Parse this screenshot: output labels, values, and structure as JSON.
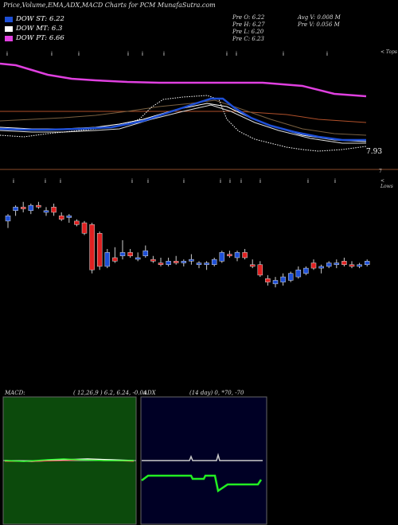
{
  "title": "Price,Volume,EMA,ADX,MACD Charts for PCM MunafaSutra.com",
  "legend": [
    {
      "label": "DOW ST: 6.22",
      "color": "#1e4fd6"
    },
    {
      "label": "DOW MT: 6.3",
      "color": "#ffffff"
    },
    {
      "label": "DOW PT: 6.66",
      "color": "#e040e0"
    }
  ],
  "stats": {
    "prev_open": "Pre O: 6.22",
    "prev_high": "Pre H: 6.27",
    "prev_low": "Pre L: 6.20",
    "prev_close": "Pre C: 6.23",
    "avg_volume": "Avg V: 0.008 M",
    "prev_volume": "Pre V: 0.056 M"
  },
  "labels": {
    "tops": "< Tops",
    "lows": "< Lows",
    "last_price": "7.93",
    "seven": "7"
  },
  "macd": {
    "label": "MACD:",
    "params": "( 12,26,9 ) 6.2, 6.24, -0.04"
  },
  "adx": {
    "label": "ADX",
    "params": "(14 day) 0, *70, -70"
  },
  "colors": {
    "bull": "#1e4fd6",
    "bear": "#e02020",
    "dow_st": "#1e4fd6",
    "dow_pt": "#e040e0",
    "orange_line": "#b0502a",
    "macd_bg": "#0c4a0c",
    "adx_bg": "#000025"
  },
  "chart_data": {
    "type": "candlestick",
    "candles": [
      {
        "o": 6.3,
        "h": 6.34,
        "l": 6.26,
        "c": 6.33
      },
      {
        "o": 6.36,
        "h": 6.39,
        "l": 6.33,
        "c": 6.38
      },
      {
        "o": 6.38,
        "h": 6.41,
        "l": 6.35,
        "c": 6.37
      },
      {
        "o": 6.36,
        "h": 6.4,
        "l": 6.34,
        "c": 6.39
      },
      {
        "o": 6.39,
        "h": 6.41,
        "l": 6.37,
        "c": 6.38
      },
      {
        "o": 6.35,
        "h": 6.38,
        "l": 6.33,
        "c": 6.36
      },
      {
        "o": 6.38,
        "h": 6.4,
        "l": 6.33,
        "c": 6.35
      },
      {
        "o": 6.33,
        "h": 6.35,
        "l": 6.3,
        "c": 6.31
      },
      {
        "o": 6.32,
        "h": 6.34,
        "l": 6.29,
        "c": 6.33
      },
      {
        "o": 6.3,
        "h": 6.31,
        "l": 6.27,
        "c": 6.28
      },
      {
        "o": 6.29,
        "h": 6.3,
        "l": 6.22,
        "c": 6.23
      },
      {
        "o": 6.28,
        "h": 6.29,
        "l": 6.0,
        "c": 6.02
      },
      {
        "o": 6.23,
        "h": 6.24,
        "l": 6.02,
        "c": 6.04
      },
      {
        "o": 6.04,
        "h": 6.14,
        "l": 6.03,
        "c": 6.12
      },
      {
        "o": 6.09,
        "h": 6.15,
        "l": 6.06,
        "c": 6.07
      },
      {
        "o": 6.1,
        "h": 6.19,
        "l": 6.08,
        "c": 6.12
      },
      {
        "o": 6.12,
        "h": 6.14,
        "l": 6.09,
        "c": 6.1
      },
      {
        "o": 6.09,
        "h": 6.12,
        "l": 6.07,
        "c": 6.09
      },
      {
        "o": 6.1,
        "h": 6.16,
        "l": 6.09,
        "c": 6.13
      },
      {
        "o": 6.08,
        "h": 6.1,
        "l": 6.06,
        "c": 6.07
      },
      {
        "o": 6.06,
        "h": 6.09,
        "l": 6.04,
        "c": 6.05
      },
      {
        "o": 6.05,
        "h": 6.09,
        "l": 6.04,
        "c": 6.07
      },
      {
        "o": 6.07,
        "h": 6.1,
        "l": 6.05,
        "c": 6.06
      },
      {
        "o": 6.06,
        "h": 6.08,
        "l": 6.04,
        "c": 6.07
      },
      {
        "o": 6.07,
        "h": 6.11,
        "l": 6.05,
        "c": 6.08
      },
      {
        "o": 6.05,
        "h": 6.07,
        "l": 6.03,
        "c": 6.06
      },
      {
        "o": 6.05,
        "h": 6.07,
        "l": 6.02,
        "c": 6.06
      },
      {
        "o": 6.05,
        "h": 6.09,
        "l": 6.04,
        "c": 6.08
      },
      {
        "o": 6.07,
        "h": 6.13,
        "l": 6.06,
        "c": 6.12
      },
      {
        "o": 6.11,
        "h": 6.13,
        "l": 6.09,
        "c": 6.1
      },
      {
        "o": 6.09,
        "h": 6.13,
        "l": 6.07,
        "c": 6.12
      },
      {
        "o": 6.12,
        "h": 6.14,
        "l": 6.08,
        "c": 6.09
      },
      {
        "o": 6.05,
        "h": 6.08,
        "l": 6.03,
        "c": 6.04
      },
      {
        "o": 6.05,
        "h": 6.07,
        "l": 5.98,
        "c": 5.99
      },
      {
        "o": 5.97,
        "h": 5.99,
        "l": 5.93,
        "c": 5.95
      },
      {
        "o": 5.94,
        "h": 5.98,
        "l": 5.92,
        "c": 5.96
      },
      {
        "o": 5.95,
        "h": 6.0,
        "l": 5.93,
        "c": 5.98
      },
      {
        "o": 5.96,
        "h": 6.01,
        "l": 5.95,
        "c": 6.0
      },
      {
        "o": 5.98,
        "h": 6.04,
        "l": 5.97,
        "c": 6.02
      },
      {
        "o": 6.0,
        "h": 6.04,
        "l": 5.99,
        "c": 6.03
      },
      {
        "o": 6.06,
        "h": 6.08,
        "l": 6.02,
        "c": 6.03
      },
      {
        "o": 6.03,
        "h": 6.05,
        "l": 6.0,
        "c": 6.04
      },
      {
        "o": 6.04,
        "h": 6.07,
        "l": 6.03,
        "c": 6.06
      },
      {
        "o": 6.05,
        "h": 6.08,
        "l": 6.03,
        "c": 6.06
      },
      {
        "o": 6.07,
        "h": 6.09,
        "l": 6.04,
        "c": 6.05
      },
      {
        "o": 6.05,
        "h": 6.07,
        "l": 6.03,
        "c": 6.04
      },
      {
        "o": 6.04,
        "h": 6.06,
        "l": 6.03,
        "c": 6.05
      },
      {
        "o": 6.05,
        "h": 6.08,
        "l": 6.04,
        "c": 6.07
      }
    ]
  }
}
